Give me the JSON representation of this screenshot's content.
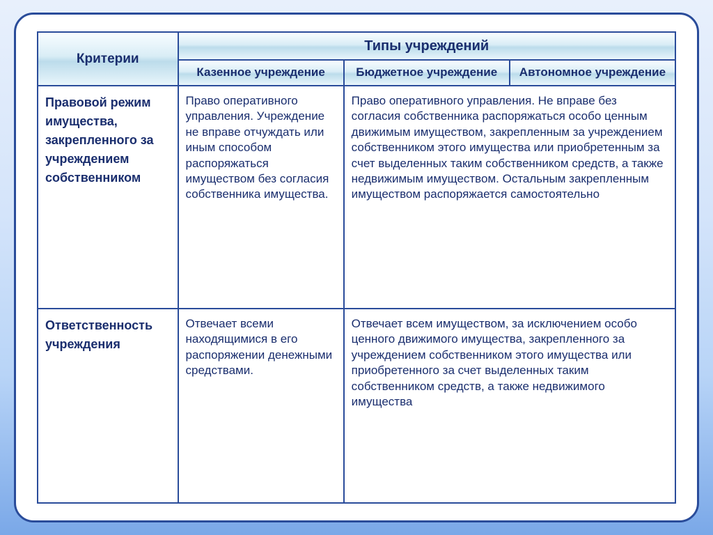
{
  "header": {
    "criteria": "Критерии",
    "types": "Типы учреждений",
    "col1": "Казенное учреждение",
    "col2": "Бюджетное учреждение",
    "col3": "Автономное учреждение"
  },
  "rows": [
    {
      "label": "Правовой режим имущества, закрепленного за учреждением собственником",
      "cell1": "Право оперативного управления. Учреждение не вправе отчуждать или иным способом распоряжаться имуществом  без согласия собственника имущества.",
      "merged23": "Право оперативного управления. Не вправе без согласия собственника распоряжаться особо ценным движимым имуществом, закрепленным за учреждением собственником этого имущества или приобретенным за счет выделенных таким собственником средств, а также недвижимым имуществом. Остальным закрепленным имуществом распоряжается самостоятельно"
    },
    {
      "label": "Ответственность учреждения",
      "cell1": "Отвечает всеми находящимися в его распоряжении денежными средствами.",
      "merged23": "Отвечает всем имуществом, за исключением особо ценного движимого имущества, закрепленного за учреждением собственником этого имущества или приобретенного за счет выделенных таким собственником средств, а также недвижимого имущества"
    }
  ]
}
